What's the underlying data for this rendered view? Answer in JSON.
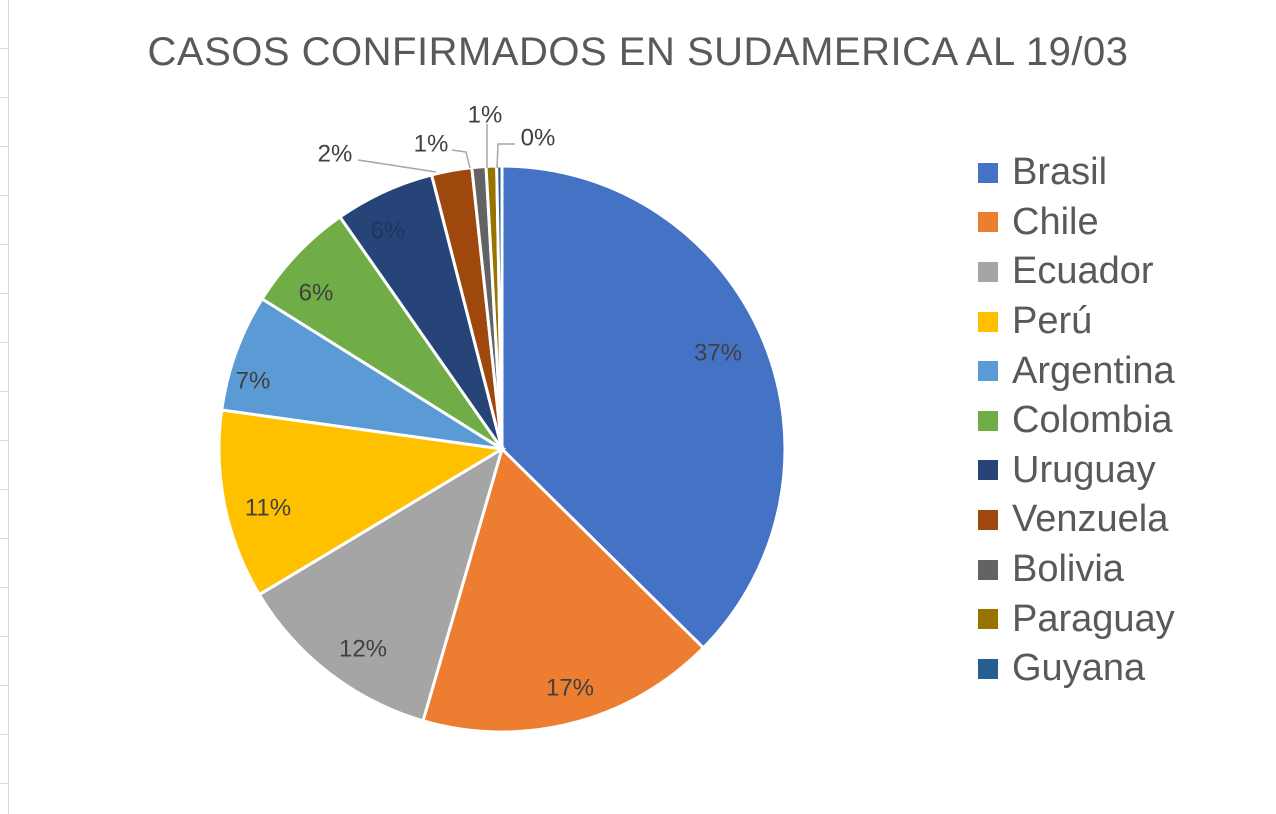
{
  "chart_data": {
    "type": "pie",
    "title": "CASOS CONFIRMADOS EN SUDAMERICA AL 19/03",
    "legend_position": "right",
    "slices": [
      {
        "name": "Brasil",
        "value": 37.4,
        "label": "37%",
        "color": "#4472C4"
      },
      {
        "name": "Chile",
        "value": 17.1,
        "label": "17%",
        "color": "#ED7D31"
      },
      {
        "name": "Ecuador",
        "value": 11.9,
        "label": "12%",
        "color": "#A5A5A5"
      },
      {
        "name": "Perú",
        "value": 10.8,
        "label": "11%",
        "color": "#FFC000"
      },
      {
        "name": "Argentina",
        "value": 6.7,
        "label": "7%",
        "color": "#5B9BD5"
      },
      {
        "name": "Colombia",
        "value": 6.4,
        "label": "6%",
        "color": "#70AD47"
      },
      {
        "name": "Uruguay",
        "value": 5.7,
        "label": "6%",
        "color": "#264478"
      },
      {
        "name": "Venzuela",
        "value": 2.3,
        "label": "2%",
        "color": "#9E480E"
      },
      {
        "name": "Bolivia",
        "value": 0.8,
        "label": "1%",
        "color": "#636363"
      },
      {
        "name": "Paraguay",
        "value": 0.6,
        "label": "1%",
        "color": "#997300"
      },
      {
        "name": "Guyana",
        "value": 0.3,
        "label": "0%",
        "color": "#255E91"
      }
    ]
  }
}
